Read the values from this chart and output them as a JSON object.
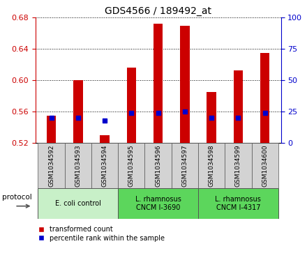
{
  "title": "GDS4566 / 189492_at",
  "samples": [
    "GSM1034592",
    "GSM1034593",
    "GSM1034594",
    "GSM1034595",
    "GSM1034596",
    "GSM1034597",
    "GSM1034598",
    "GSM1034599",
    "GSM1034600"
  ],
  "transformed_count": [
    0.555,
    0.6,
    0.53,
    0.616,
    0.672,
    0.67,
    0.585,
    0.613,
    0.635
  ],
  "percentile_rank": [
    20,
    20,
    18,
    24,
    24,
    25,
    20,
    20,
    24
  ],
  "bar_bottom": 0.52,
  "ylim_left": [
    0.52,
    0.68
  ],
  "ylim_right": [
    0,
    100
  ],
  "yticks_left": [
    0.52,
    0.56,
    0.6,
    0.64,
    0.68
  ],
  "yticks_right": [
    0,
    25,
    50,
    75,
    100
  ],
  "bar_color": "#cc0000",
  "blue_color": "#0000cc",
  "tick_label_color_left": "#cc0000",
  "tick_label_color_right": "#0000cc",
  "bar_width": 0.35,
  "blue_marker_size": 4,
  "sample_box_color": "#d3d3d3",
  "group_defs": [
    {
      "label": "E. coli control",
      "start": 0,
      "end": 2,
      "color": "#c8f0c8"
    },
    {
      "label": "L. rhamnosus\nCNCM I-3690",
      "start": 3,
      "end": 5,
      "color": "#5cd65c"
    },
    {
      "label": "L. rhamnosus\nCNCM I-4317",
      "start": 6,
      "end": 8,
      "color": "#5cd65c"
    }
  ]
}
